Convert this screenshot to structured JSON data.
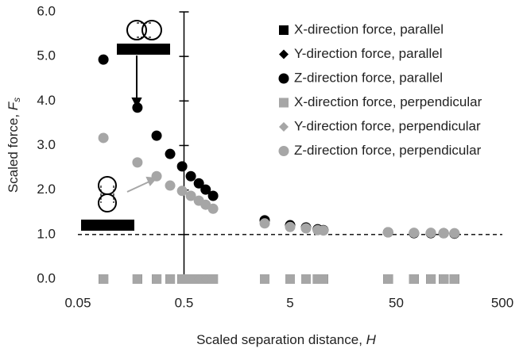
{
  "chart_data": {
    "type": "scatter",
    "x_label": "Scaled separation distance, ",
    "x_label_symbol": "H",
    "y_label": "Scaled force, ",
    "y_label_symbol": "F",
    "y_label_subscript": "s",
    "x": [
      0.087,
      0.182,
      0.276,
      0.37,
      0.48,
      0.58,
      0.69,
      0.8,
      0.94,
      2.88,
      5.0,
      7.06,
      9.1,
      10.3,
      41.9,
      73.5,
      106,
      140,
      177
    ],
    "series": [
      {
        "name": "X-direction force, parallel",
        "color": "#000000",
        "marker": "square",
        "values": [
          0,
          0,
          0,
          0,
          0,
          0,
          0,
          0,
          0,
          0,
          0,
          0,
          0,
          0,
          0,
          0,
          0,
          0,
          0
        ]
      },
      {
        "name": "Y-direction force, parallel",
        "color": "#000000",
        "marker": "diamond",
        "values": [
          0,
          0,
          0,
          0,
          0,
          0,
          0,
          0,
          0,
          0,
          0,
          0,
          0,
          0,
          0,
          0,
          0,
          0,
          0
        ]
      },
      {
        "name": "Z-direction force, parallel",
        "color": "#000000",
        "marker": "circle",
        "values": [
          4.93,
          3.85,
          3.22,
          2.81,
          2.53,
          2.31,
          2.15,
          2.01,
          1.87,
          1.32,
          1.21,
          1.16,
          1.12,
          1.1,
          1.05,
          1.03,
          1.03,
          1.03,
          1.02
        ]
      },
      {
        "name": "X-direction force, perpendicular",
        "color": "#a6a6a6",
        "marker": "square",
        "values": [
          0,
          0,
          0,
          0,
          0,
          0,
          0,
          0,
          0,
          0,
          0,
          0,
          0,
          0,
          0,
          0,
          0,
          0,
          0
        ]
      },
      {
        "name": "Y-direction force, perpendicular",
        "color": "#a6a6a6",
        "marker": "diamond",
        "values": [
          0,
          0,
          0,
          0,
          0,
          0,
          0,
          0,
          0,
          0,
          0,
          0,
          0,
          0,
          0,
          0,
          0,
          0,
          0
        ]
      },
      {
        "name": "Z-direction force, perpendicular",
        "color": "#a6a6a6",
        "marker": "circle",
        "values": [
          3.17,
          2.62,
          2.31,
          2.1,
          1.98,
          1.87,
          1.76,
          1.67,
          1.58,
          1.25,
          1.17,
          1.14,
          1.1,
          1.09,
          1.05,
          1.04,
          1.04,
          1.03,
          1.03
        ]
      }
    ],
    "xscale": "log",
    "xlim": [
      0.05,
      500
    ],
    "xticks": [
      0.05,
      0.5,
      5,
      50,
      500
    ],
    "ylim": [
      0,
      6
    ],
    "yticks": [
      {
        "value": 0,
        "label": "0.0"
      },
      {
        "value": 1,
        "label": "1.0"
      },
      {
        "value": 2,
        "label": "2.0"
      },
      {
        "value": 3,
        "label": "3.0"
      },
      {
        "value": 4,
        "label": "4.0"
      },
      {
        "value": 5,
        "label": "5.0"
      },
      {
        "value": 6,
        "label": "6.0"
      }
    ],
    "y_axis_at": 0.5,
    "hline": 1,
    "legend": "upper right"
  }
}
